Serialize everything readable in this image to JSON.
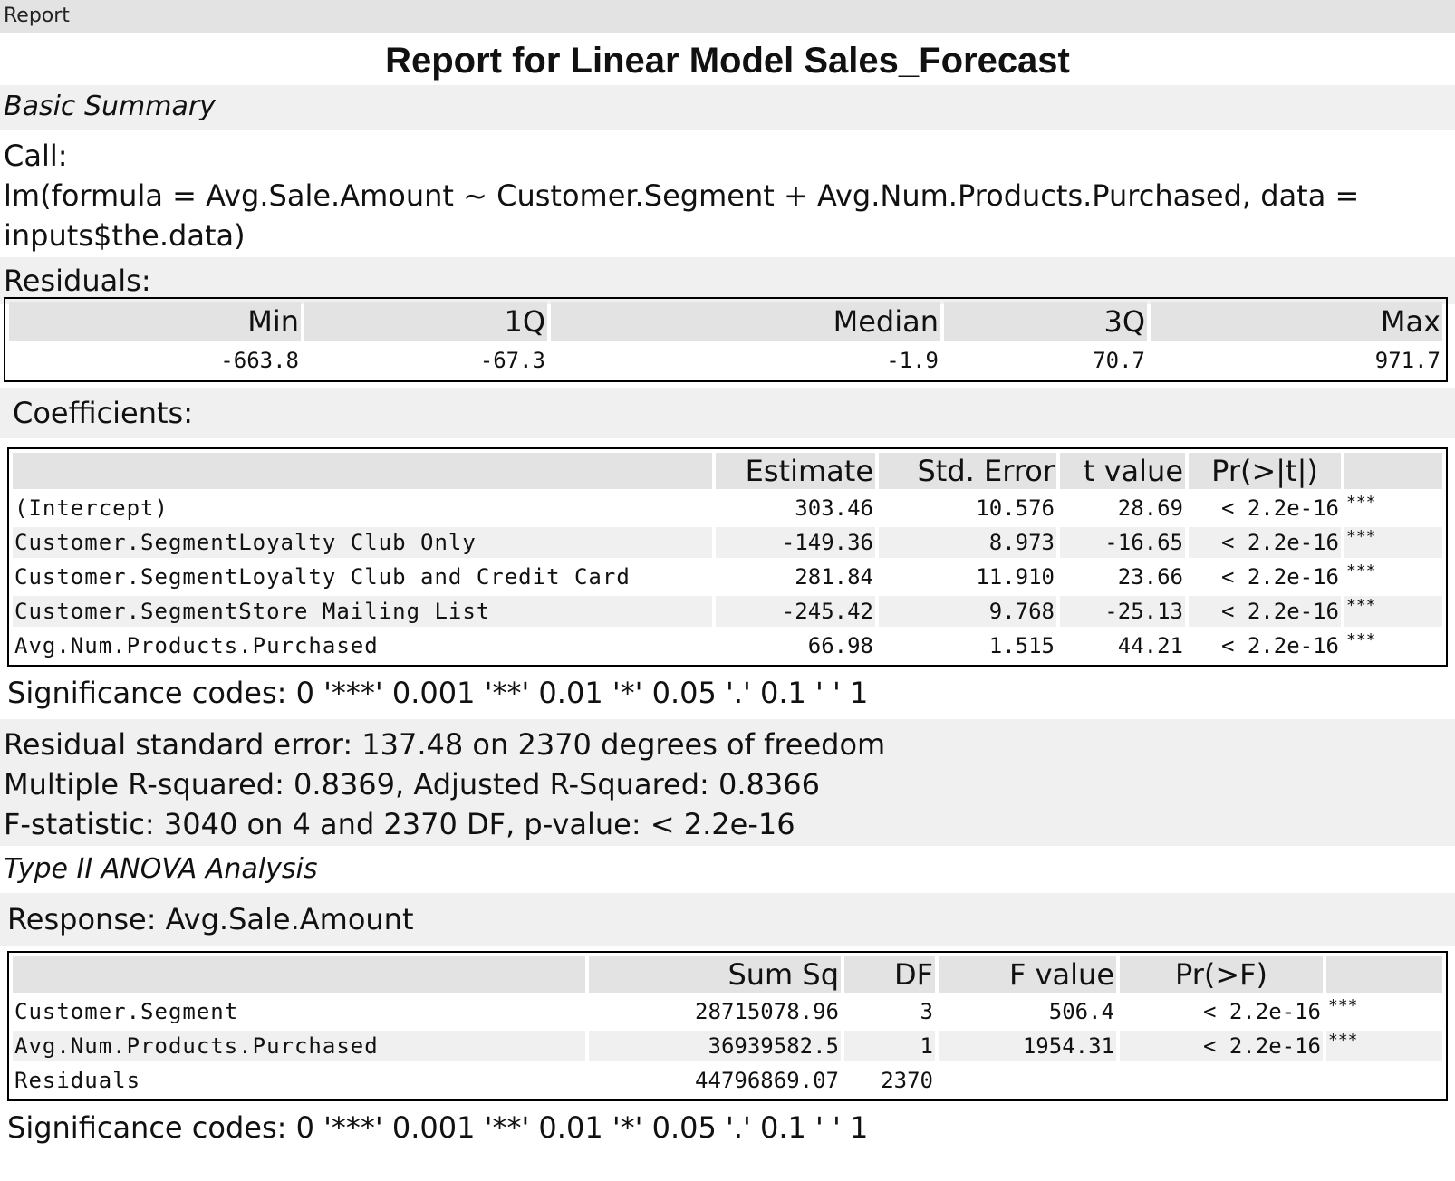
{
  "tab_label": "Report",
  "title": "Report for Linear Model Sales_Forecast",
  "basic_summary_heading": "Basic Summary",
  "call_label": "Call:",
  "call_line1": "lm(formula = Avg.Sale.Amount ~ Customer.Segment + Avg.Num.Products.Purchased, data =",
  "call_line2": "inputs$the.data)",
  "residuals_label": "Residuals:",
  "residuals_table": {
    "headers": [
      "Min",
      "1Q",
      "Median",
      "3Q",
      "Max"
    ],
    "values": [
      "-663.8",
      "-67.3",
      "-1.9",
      "70.7",
      "971.7"
    ]
  },
  "coefficients_label": "Coefficients:",
  "coefficients_table": {
    "headers": [
      "",
      "Estimate",
      "Std. Error",
      "t value",
      "Pr(>|t|)",
      ""
    ],
    "rows": [
      {
        "name": "(Intercept)",
        "estimate": "303.46",
        "std_error": "10.576",
        "t_value": "28.69",
        "p": "< 2.2e-16",
        "sig": "***"
      },
      {
        "name": "Customer.SegmentLoyalty Club Only",
        "estimate": "-149.36",
        "std_error": "8.973",
        "t_value": "-16.65",
        "p": "< 2.2e-16",
        "sig": "***"
      },
      {
        "name": "Customer.SegmentLoyalty Club and Credit Card",
        "estimate": "281.84",
        "std_error": "11.910",
        "t_value": "23.66",
        "p": "< 2.2e-16",
        "sig": "***"
      },
      {
        "name": "Customer.SegmentStore Mailing List",
        "estimate": "-245.42",
        "std_error": "9.768",
        "t_value": "-25.13",
        "p": "< 2.2e-16",
        "sig": "***"
      },
      {
        "name": "Avg.Num.Products.Purchased",
        "estimate": "66.98",
        "std_error": "1.515",
        "t_value": "44.21",
        "p": "< 2.2e-16",
        "sig": "***"
      }
    ]
  },
  "significance_codes": "Significance codes: 0 '***' 0.001 '**' 0.01 '*' 0.05 '.' 0.1 ' ' 1",
  "stats": {
    "line1": "Residual standard error: 137.48 on 2370 degrees of freedom",
    "line2": "Multiple R-squared: 0.8369, Adjusted R-Squared: 0.8366",
    "line3": "F-statistic: 3040 on 4 and 2370 DF, p-value: < 2.2e-16"
  },
  "anova_heading": "Type II ANOVA Analysis",
  "response_label": "Response: Avg.Sale.Amount",
  "anova_table": {
    "headers": [
      "",
      "Sum Sq",
      "DF",
      "F value",
      "Pr(>F)",
      ""
    ],
    "rows": [
      {
        "name": "Customer.Segment",
        "sum_sq": "28715078.96",
        "df": "3",
        "f_value": "506.4",
        "p": "< 2.2e-16",
        "sig": "***"
      },
      {
        "name": "Avg.Num.Products.Purchased",
        "sum_sq": "36939582.5",
        "df": "1",
        "f_value": "1954.31",
        "p": "< 2.2e-16",
        "sig": "***"
      },
      {
        "name": "Residuals",
        "sum_sq": "44796869.07",
        "df": "2370",
        "f_value": "",
        "p": "",
        "sig": ""
      }
    ]
  },
  "significance_codes_2": "Significance codes: 0 '***' 0.001 '**' 0.01 '*' 0.05 '.' 0.1 ' ' 1"
}
